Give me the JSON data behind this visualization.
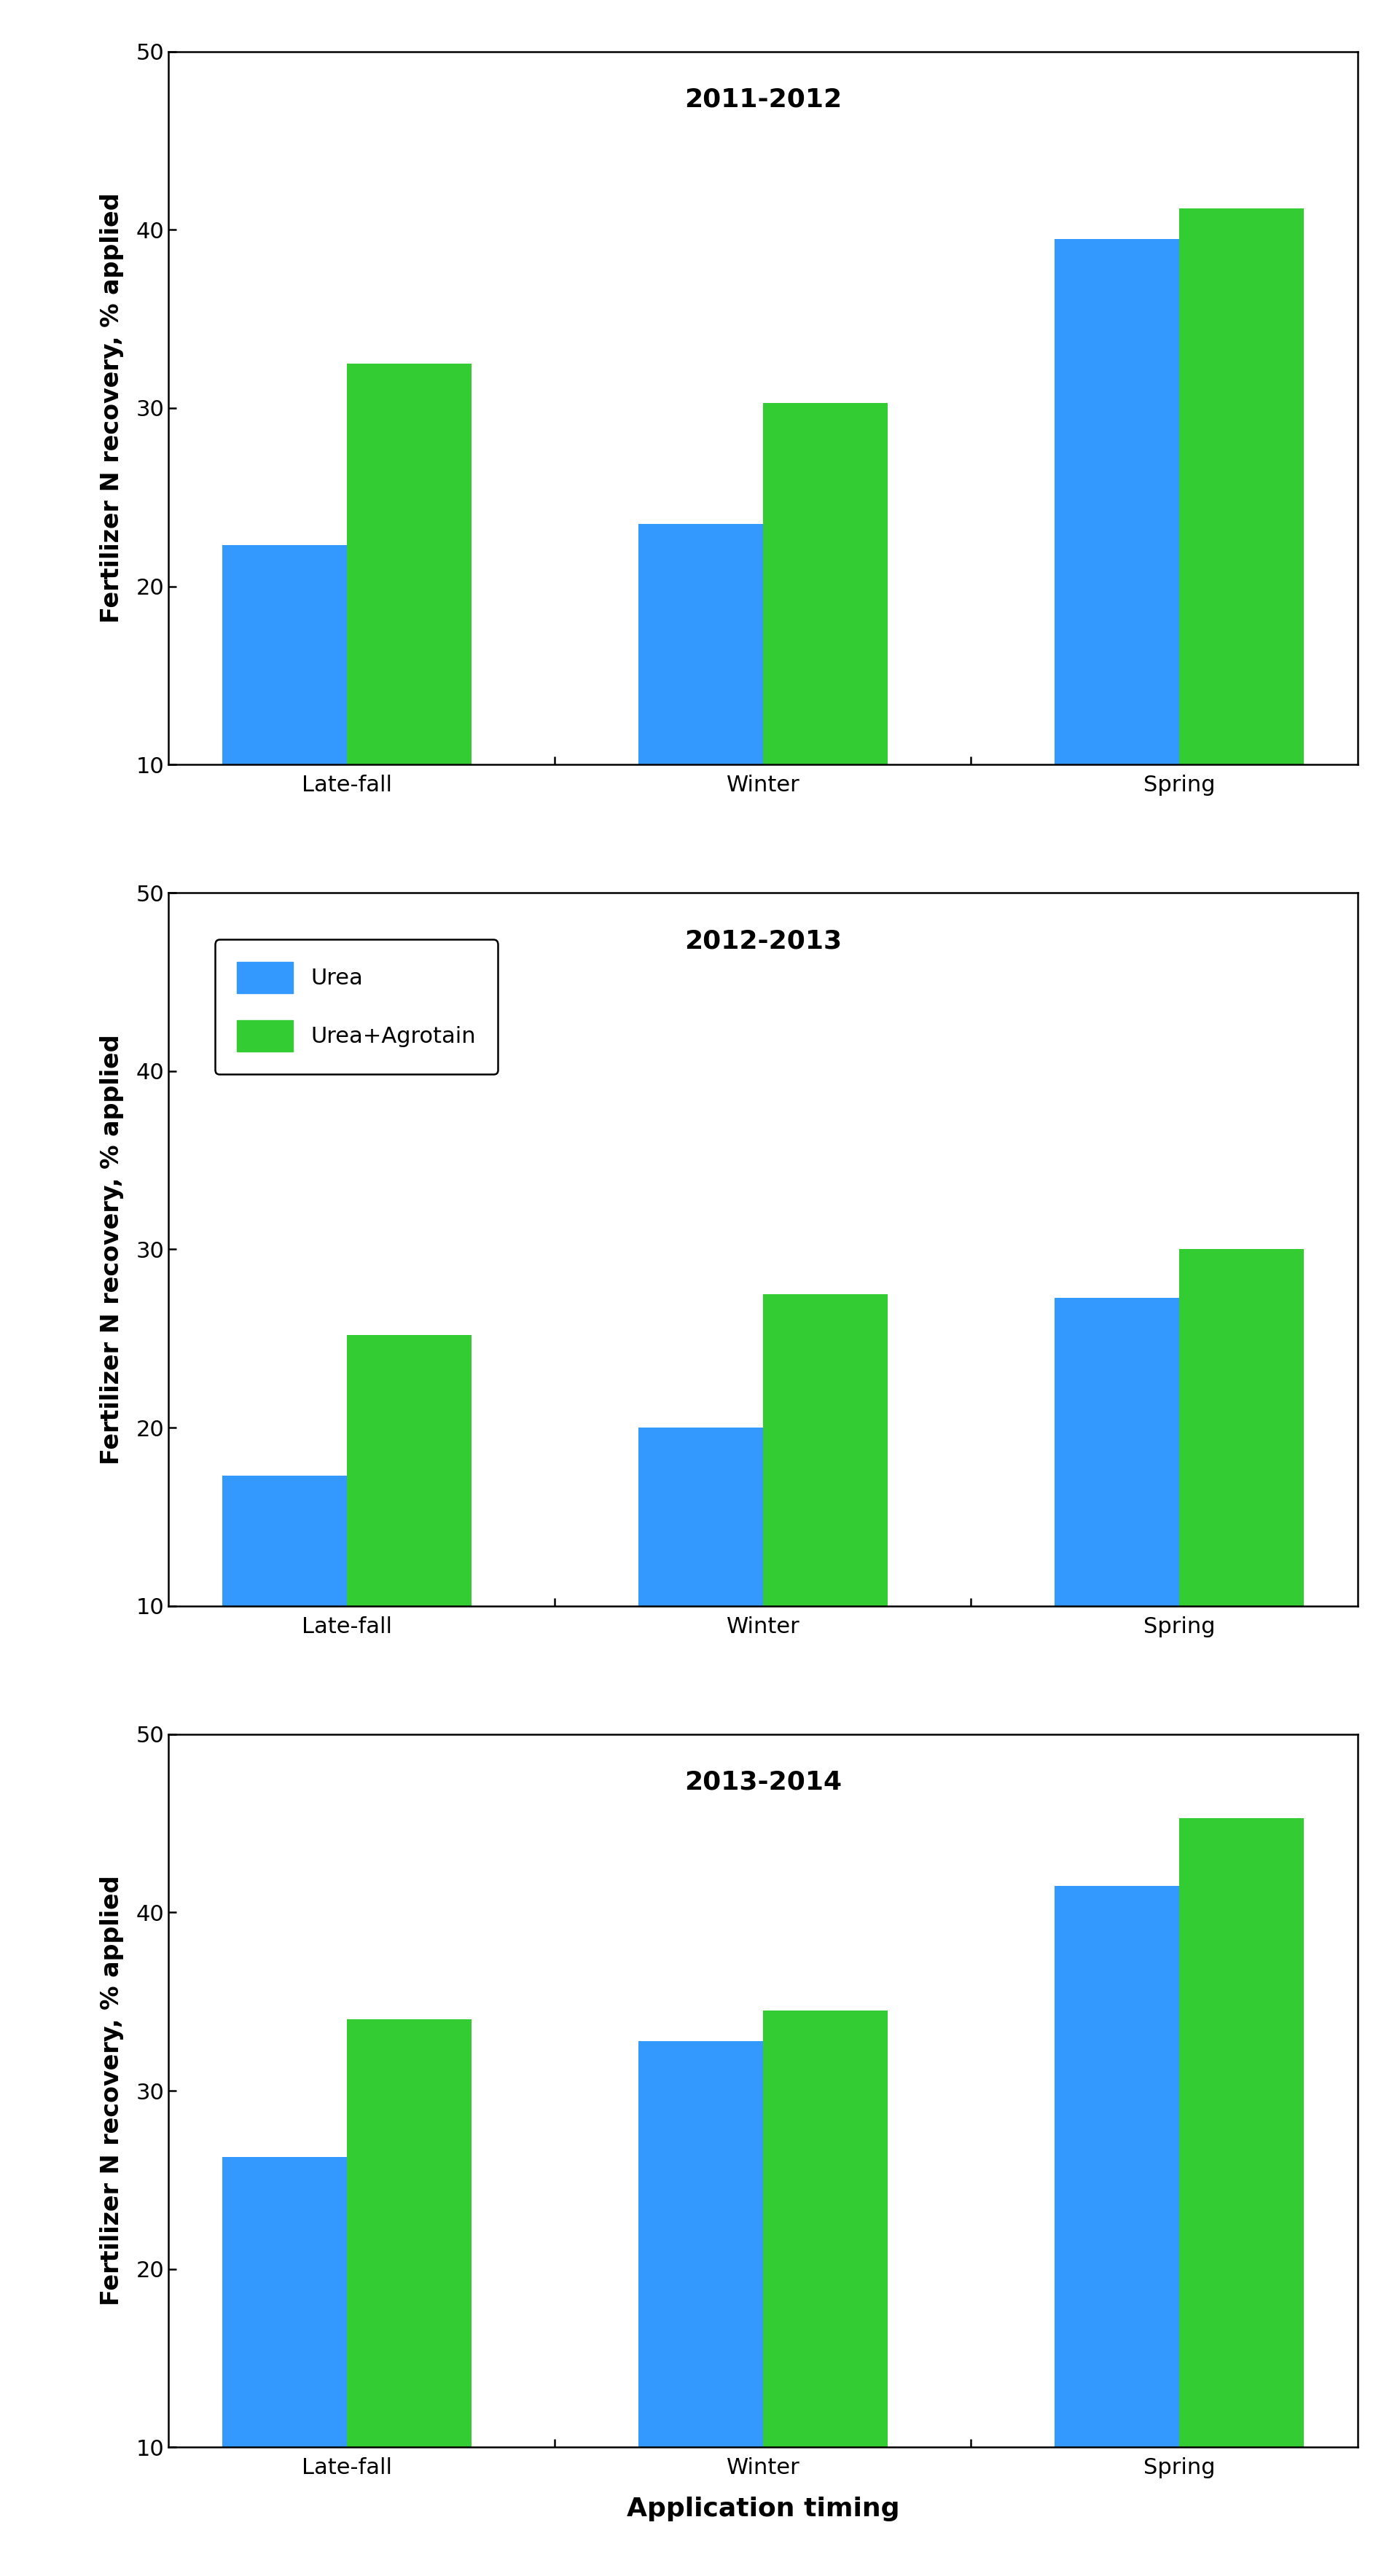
{
  "years": [
    "2011-2012",
    "2012-2013",
    "2013-2014"
  ],
  "categories": [
    "Late-fall",
    "Winter",
    "Spring"
  ],
  "urea_values": [
    [
      22.3,
      23.5,
      39.5
    ],
    [
      17.3,
      20.0,
      27.3
    ],
    [
      26.3,
      32.8,
      41.5
    ]
  ],
  "agrotain_values": [
    [
      32.5,
      30.3,
      41.2
    ],
    [
      25.2,
      27.5,
      30.0
    ],
    [
      34.0,
      34.5,
      45.3
    ]
  ],
  "urea_color": "#3399FF",
  "agrotain_color": "#33CC33",
  "ylabel": "Fertilizer N recovery, % applied",
  "xlabel": "Application timing",
  "ylim": [
    10,
    50
  ],
  "yticks": [
    10,
    20,
    30,
    40,
    50
  ],
  "legend_labels": [
    "Urea",
    "Urea+Agrotain"
  ],
  "title_fontsize": 26,
  "axis_fontsize": 24,
  "tick_fontsize": 22,
  "legend_fontsize": 22,
  "bar_width": 0.3,
  "legend_panel_idx": 1
}
